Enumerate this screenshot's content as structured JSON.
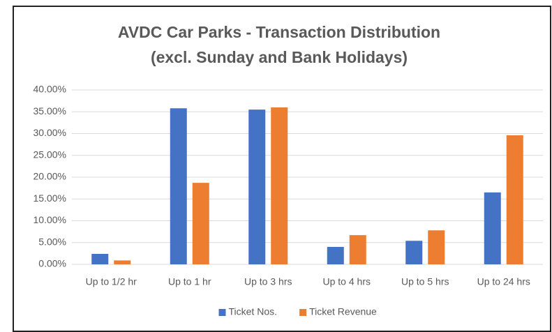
{
  "chart_data": {
    "type": "bar",
    "title": "AVDC Car Parks - Transaction Distribution",
    "subtitle": "(excl. Sunday and Bank Holidays)",
    "categories": [
      "Up to 1/2 hr",
      "Up to 1 hr",
      "Up to 3 hrs",
      "Up to 4 hrs",
      "Up to 5 hrs",
      "Up to 24 hrs"
    ],
    "series": [
      {
        "name": "Ticket Nos.",
        "color": "#4472c4",
        "values": [
          2.4,
          35.8,
          35.5,
          4.0,
          5.4,
          16.5
        ]
      },
      {
        "name": "Ticket Revenue",
        "color": "#ed7d31",
        "values": [
          0.9,
          18.7,
          36.0,
          6.7,
          7.8,
          29.6
        ]
      }
    ],
    "ylim": [
      0,
      40
    ],
    "yticks": [
      {
        "value": 0,
        "label": "0.00%"
      },
      {
        "value": 5,
        "label": "5.00%"
      },
      {
        "value": 10,
        "label": "10.00%"
      },
      {
        "value": 15,
        "label": "15.00%"
      },
      {
        "value": 20,
        "label": "20.00%"
      },
      {
        "value": 25,
        "label": "25.00%"
      },
      {
        "value": 30,
        "label": "30.00%"
      },
      {
        "value": 35,
        "label": "35.00%"
      },
      {
        "value": 40,
        "label": "40.00%"
      }
    ],
    "grid": true,
    "legend": "bottom"
  }
}
